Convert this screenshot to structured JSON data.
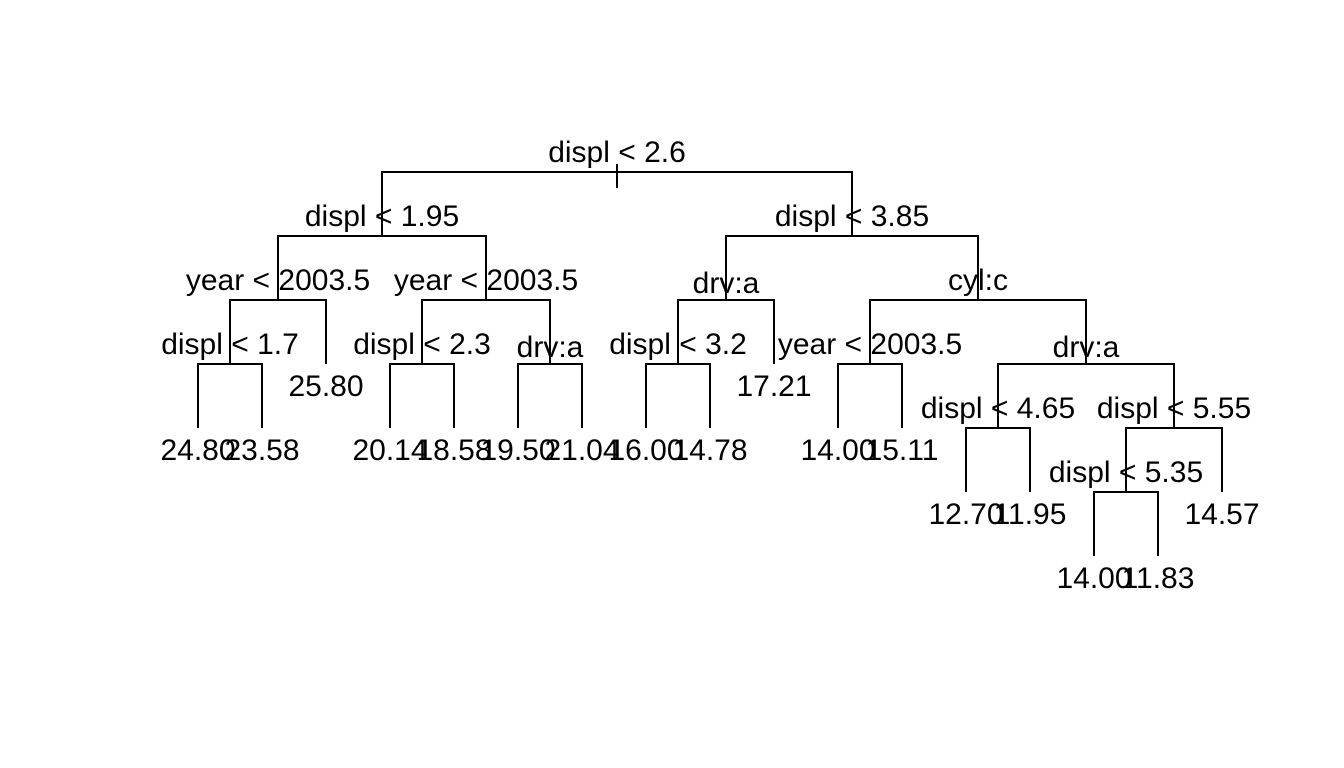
{
  "tree": {
    "root": {
      "split": "displ < 2.6"
    },
    "splits": {
      "n2": "displ < 1.95",
      "n3": "displ < 3.85",
      "n4": "year < 2003.5",
      "n5": "year < 2003.5",
      "n6": "drv:a",
      "n7": "cyl:c",
      "n8": "displ < 1.7",
      "n10": "displ < 2.3",
      "n11": "drv:a",
      "n12": "displ < 3.2",
      "n14": "year < 2003.5",
      "n15": "drv:a",
      "n30": "displ < 4.65",
      "n31": "displ < 5.55",
      "n62": "displ < 5.35"
    },
    "leaves": {
      "l16": "24.80",
      "l17": "23.58",
      "l9": "25.80",
      "l20": "20.14",
      "l21": "18.58",
      "l22": "19.50",
      "l23": "21.04",
      "l24": "16.00",
      "l25": "14.78",
      "l13": "17.21",
      "l28": "14.00",
      "l29": "15.11",
      "l60": "12.70",
      "l61": "11.95",
      "l124": "14.00",
      "l125": "11.83",
      "l63": "14.57"
    }
  }
}
